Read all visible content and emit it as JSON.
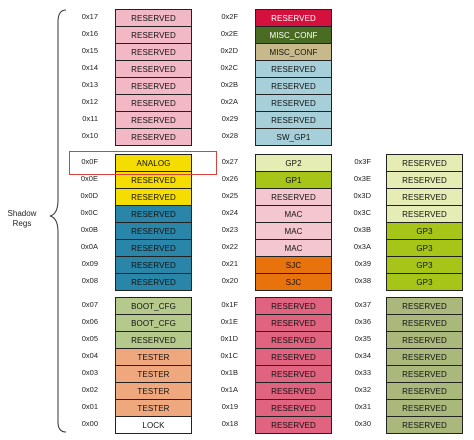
{
  "side_label": [
    "Shadow",
    "Regs"
  ],
  "colors": {
    "pink": "#f2b8c6",
    "red": "#d4103c",
    "darkgreen": "#4a6c22",
    "khaki": "#c7b98a",
    "lightblue": "#a6cfd9",
    "yellow": "#f5dd00",
    "teal": "#2a86a8",
    "lightlime": "#e6edb4",
    "lime": "#a7c519",
    "lightpink": "#f4c6cf",
    "orange": "#e8720c",
    "sage": "#b5c98d",
    "salmon": "#efa87d",
    "white": "#ffffff",
    "rose": "#e0637f",
    "olive": "#aab87c",
    "highlight": "#d9413b"
  },
  "columns": [
    {
      "cells": [
        {
          "addr": "0x17",
          "label": "RESERVED",
          "color": "pink"
        },
        {
          "addr": "0x16",
          "label": "RESERVED",
          "color": "pink"
        },
        {
          "addr": "0x15",
          "label": "RESERVED",
          "color": "pink"
        },
        {
          "addr": "0x14",
          "label": "RESERVED",
          "color": "pink"
        },
        {
          "addr": "0x13",
          "label": "RESERVED",
          "color": "pink"
        },
        {
          "addr": "0x12",
          "label": "RESERVED",
          "color": "pink"
        },
        {
          "addr": "0x11",
          "label": "RESERVED",
          "color": "pink"
        },
        {
          "addr": "0x10",
          "label": "RESERVED",
          "color": "pink"
        },
        {
          "addr": "0x0F",
          "label": "ANALOG",
          "color": "yellow"
        },
        {
          "addr": "0x0E",
          "label": "RESERVED",
          "color": "yellow"
        },
        {
          "addr": "0x0D",
          "label": "RESERVED",
          "color": "yellow"
        },
        {
          "addr": "0x0C",
          "label": "RESERVED",
          "color": "teal"
        },
        {
          "addr": "0x0B",
          "label": "RESERVED",
          "color": "teal"
        },
        {
          "addr": "0x0A",
          "label": "RESERVED",
          "color": "teal"
        },
        {
          "addr": "0x09",
          "label": "RESERVED",
          "color": "teal"
        },
        {
          "addr": "0x08",
          "label": "RESERVED",
          "color": "teal"
        },
        {
          "addr": "0x07",
          "label": "BOOT_CFG",
          "color": "sage"
        },
        {
          "addr": "0x06",
          "label": "BOOT_CFG",
          "color": "sage"
        },
        {
          "addr": "0x05",
          "label": "RESERVED",
          "color": "sage"
        },
        {
          "addr": "0x04",
          "label": "TESTER",
          "color": "salmon"
        },
        {
          "addr": "0x03",
          "label": "TESTER",
          "color": "salmon"
        },
        {
          "addr": "0x02",
          "label": "TESTER",
          "color": "salmon"
        },
        {
          "addr": "0x01",
          "label": "TESTER",
          "color": "salmon"
        },
        {
          "addr": "0x00",
          "label": "LOCK",
          "color": "white"
        }
      ]
    },
    {
      "cells": [
        {
          "addr": "0x2F",
          "label": "RESERVED",
          "color": "red",
          "light": true
        },
        {
          "addr": "0x2E",
          "label": "MISC_CONF",
          "color": "darkgreen",
          "light": true
        },
        {
          "addr": "0x2D",
          "label": "MISC_CONF",
          "color": "khaki"
        },
        {
          "addr": "0x2C",
          "label": "RESERVED",
          "color": "lightblue"
        },
        {
          "addr": "0x2B",
          "label": "RESERVED",
          "color": "lightblue"
        },
        {
          "addr": "0x2A",
          "label": "RESERVED",
          "color": "lightblue"
        },
        {
          "addr": "0x29",
          "label": "RESERVED",
          "color": "lightblue"
        },
        {
          "addr": "0x28",
          "label": "SW_GP1",
          "color": "lightblue"
        },
        {
          "addr": "0x27",
          "label": "GP2",
          "color": "lightlime"
        },
        {
          "addr": "0x26",
          "label": "GP1",
          "color": "lime"
        },
        {
          "addr": "0x25",
          "label": "RESERVED",
          "color": "lightpink"
        },
        {
          "addr": "0x24",
          "label": "MAC",
          "color": "lightpink"
        },
        {
          "addr": "0x23",
          "label": "MAC",
          "color": "lightpink"
        },
        {
          "addr": "0x22",
          "label": "MAC",
          "color": "lightpink"
        },
        {
          "addr": "0x21",
          "label": "SJC",
          "color": "orange"
        },
        {
          "addr": "0x20",
          "label": "SJC",
          "color": "orange"
        },
        {
          "addr": "0x1F",
          "label": "RESERVED",
          "color": "rose"
        },
        {
          "addr": "0x1E",
          "label": "RESERVED",
          "color": "rose"
        },
        {
          "addr": "0x1D",
          "label": "RESERVED",
          "color": "rose"
        },
        {
          "addr": "0x1C",
          "label": "RESERVED",
          "color": "rose"
        },
        {
          "addr": "0x1B",
          "label": "RESERVED",
          "color": "rose"
        },
        {
          "addr": "0x1A",
          "label": "RESERVED",
          "color": "rose"
        },
        {
          "addr": "0x19",
          "label": "RESERVED",
          "color": "rose"
        },
        {
          "addr": "0x18",
          "label": "RESERVED",
          "color": "rose"
        }
      ]
    },
    {
      "cells": [
        {
          "addr": "0x3F",
          "label": "RESERVED",
          "color": "lightlime"
        },
        {
          "addr": "0x3E",
          "label": "RESERVED",
          "color": "lightlime"
        },
        {
          "addr": "0x3D",
          "label": "RESERVED",
          "color": "lightlime"
        },
        {
          "addr": "0x3C",
          "label": "RESERVED",
          "color": "lightlime"
        },
        {
          "addr": "0x3B",
          "label": "GP3",
          "color": "lime"
        },
        {
          "addr": "0x3A",
          "label": "GP3",
          "color": "lime"
        },
        {
          "addr": "0x39",
          "label": "GP3",
          "color": "lime"
        },
        {
          "addr": "0x38",
          "label": "GP3",
          "color": "lime"
        },
        {
          "addr": "0x37",
          "label": "RESERVED",
          "color": "olive"
        },
        {
          "addr": "0x36",
          "label": "RESERVED",
          "color": "olive"
        },
        {
          "addr": "0x35",
          "label": "RESERVED",
          "color": "olive"
        },
        {
          "addr": "0x34",
          "label": "RESERVED",
          "color": "olive"
        },
        {
          "addr": "0x33",
          "label": "RESERVED",
          "color": "olive"
        },
        {
          "addr": "0x32",
          "label": "RESERVED",
          "color": "olive"
        },
        {
          "addr": "0x31",
          "label": "RESERVED",
          "color": "olive"
        },
        {
          "addr": "0x30",
          "label": "RESERVED",
          "color": "olive"
        }
      ]
    }
  ]
}
